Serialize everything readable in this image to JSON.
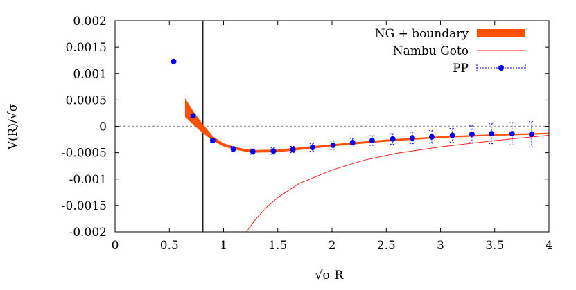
{
  "chart_data": {
    "type": "line",
    "xlabel": "√σ R",
    "ylabel": "V(R)/√σ",
    "xlim": [
      0,
      4
    ],
    "ylim": [
      -0.002,
      0.002
    ],
    "xticks": [
      "0",
      "0.5",
      "1",
      "1.5",
      "2",
      "2.5",
      "3",
      "3.5",
      "4"
    ],
    "yticks": [
      "0.002",
      "0.0015",
      "0.001",
      "0.0005",
      "0",
      "-0.0005",
      "-0.001",
      "-0.0015",
      "-0.002"
    ],
    "vertical_line_x": 0.81,
    "zero_line": true,
    "legend_position": "top-right",
    "series": [
      {
        "name": "NG + boundary",
        "kind": "band",
        "color": "#ff5000",
        "x": [
          0.65,
          0.72,
          0.8,
          0.9,
          1.0,
          1.1,
          1.2,
          1.3,
          1.5,
          1.75,
          2.0,
          2.5,
          3.0,
          3.5,
          4.0
        ],
        "lower": [
          0.00018,
          5e-05,
          -0.0001,
          -0.00026,
          -0.00037,
          -0.00043,
          -0.00047,
          -0.00049,
          -0.00048,
          -0.00043,
          -0.00037,
          -0.00028,
          -0.00021,
          -0.00017,
          -0.00014
        ],
        "upper": [
          0.0005,
          0.00027,
          5e-05,
          -0.0002,
          -0.00033,
          -0.0004,
          -0.00044,
          -0.00046,
          -0.00045,
          -0.0004,
          -0.00035,
          -0.00026,
          -0.0002,
          -0.00016,
          -0.00013
        ]
      },
      {
        "name": "Nambu Goto",
        "kind": "line",
        "color": "#ff2020",
        "x": [
          1.21,
          1.3,
          1.4,
          1.5,
          1.7,
          2.0,
          2.3,
          2.6,
          3.0,
          3.5,
          4.0
        ],
        "y": [
          -0.002,
          -0.00175,
          -0.00153,
          -0.00135,
          -0.00108,
          -0.00083,
          -0.00064,
          -0.00051,
          -0.00039,
          -0.00027,
          -0.00017
        ]
      },
      {
        "name": "PP",
        "kind": "points",
        "color": "#0000ff",
        "x": [
          0.54,
          0.72,
          0.9,
          1.09,
          1.27,
          1.46,
          1.64,
          1.82,
          2.01,
          2.19,
          2.37,
          2.56,
          2.74,
          2.92,
          3.11,
          3.29,
          3.47,
          3.66,
          3.84
        ],
        "y": [
          0.00123,
          0.0002,
          -0.00027,
          -0.00043,
          -0.00048,
          -0.00047,
          -0.00044,
          -0.0004,
          -0.00036,
          -0.00031,
          -0.00027,
          -0.00024,
          -0.00022,
          -0.0002,
          -0.00017,
          -0.00015,
          -0.00014,
          -0.00014,
          -0.00015
        ],
        "err": [
          2e-05,
          3e-05,
          4e-05,
          5e-05,
          5e-05,
          6e-05,
          6e-05,
          7e-05,
          8e-05,
          8e-05,
          9e-05,
          0.0001,
          0.00011,
          0.00012,
          0.00013,
          0.00016,
          0.00019,
          0.00021,
          0.00024
        ]
      }
    ]
  }
}
